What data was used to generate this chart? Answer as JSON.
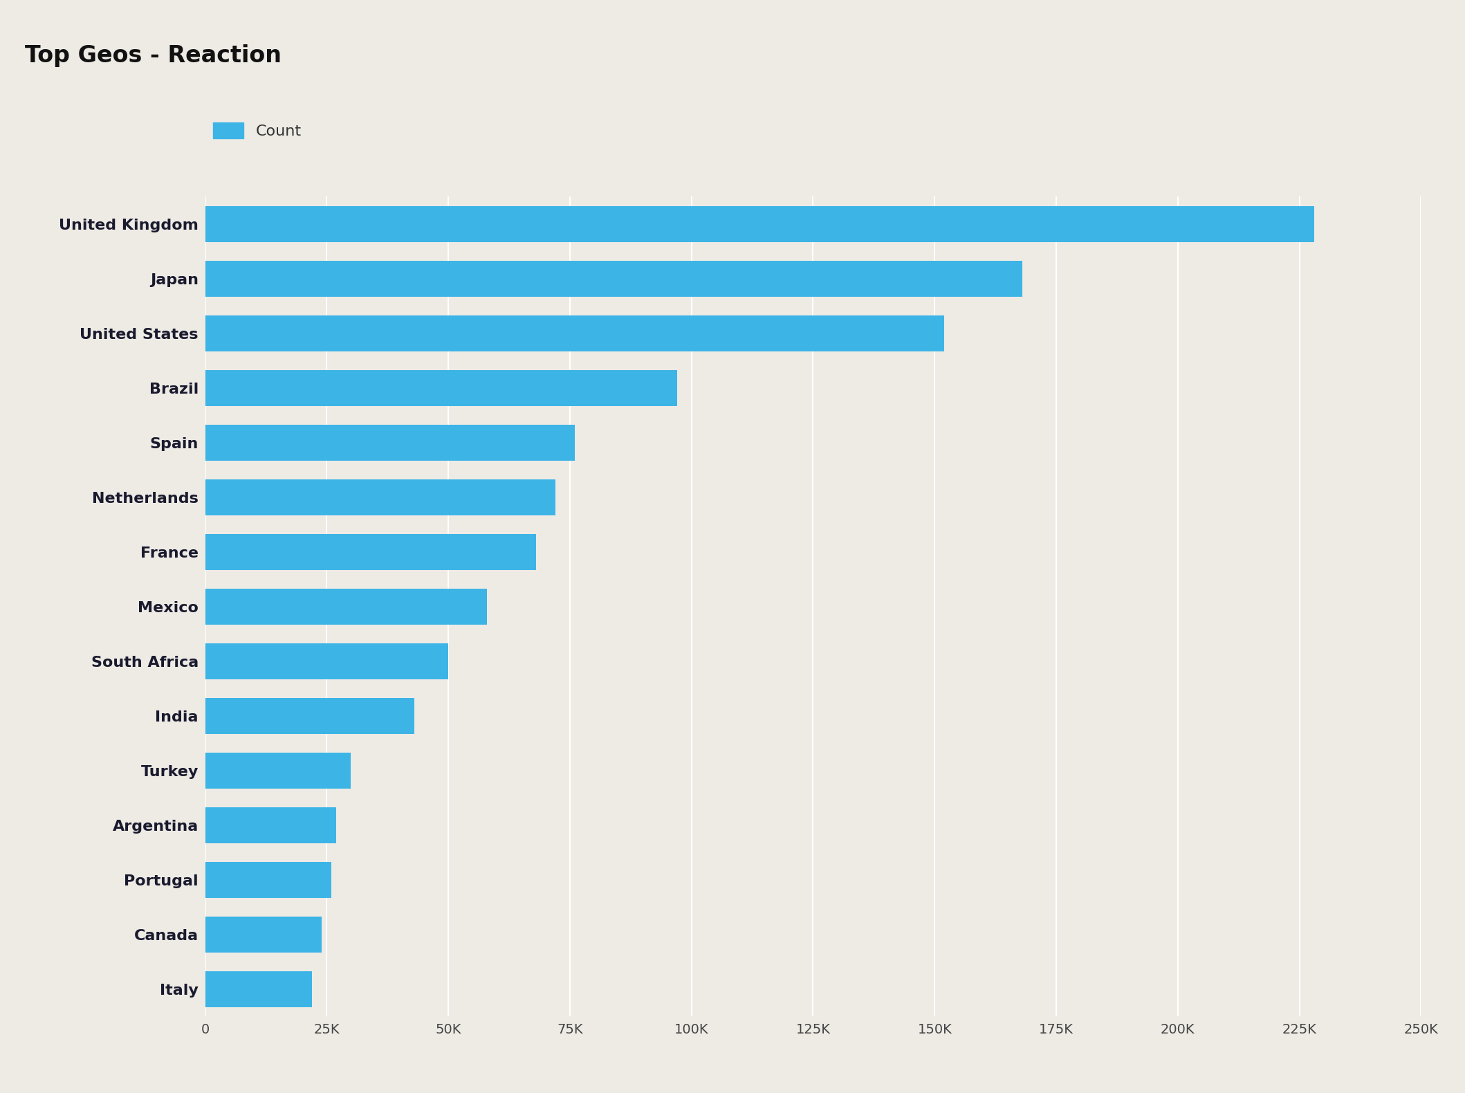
{
  "title": "Top Geos - Reaction",
  "categories": [
    "United Kingdom",
    "Japan",
    "United States",
    "Brazil",
    "Spain",
    "Netherlands",
    "France",
    "Mexico",
    "South Africa",
    "India",
    "Turkey",
    "Argentina",
    "Portugal",
    "Canada",
    "Italy"
  ],
  "values": [
    228000,
    168000,
    152000,
    97000,
    76000,
    72000,
    68000,
    58000,
    50000,
    43000,
    30000,
    27000,
    26000,
    24000,
    22000
  ],
  "bar_color": "#3cb4e6",
  "background_color": "#eeebe5",
  "title_bg_color": "#e0dcd6",
  "legend_label": "Count",
  "xlim": [
    0,
    250000
  ],
  "xtick_step": 25000,
  "title_fontsize": 24,
  "label_fontsize": 16,
  "tick_fontsize": 14,
  "legend_fontsize": 16
}
